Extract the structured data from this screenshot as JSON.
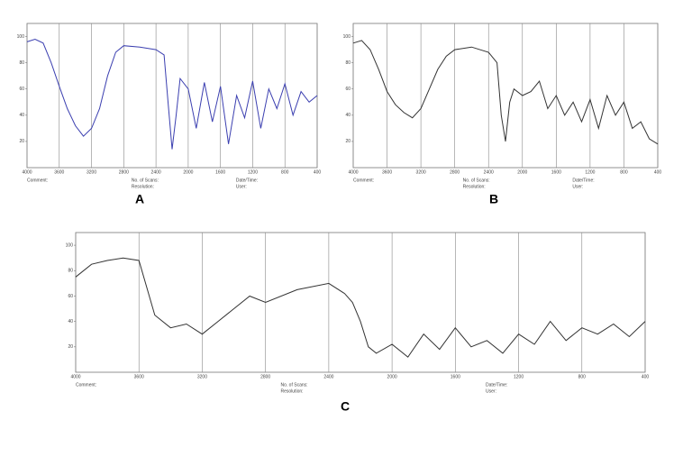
{
  "chart_data": [
    {
      "type": "line",
      "label": "A",
      "x": [
        4000,
        3900,
        3800,
        3700,
        3600,
        3500,
        3400,
        3300,
        3200,
        3100,
        3000,
        2900,
        2800,
        2600,
        2400,
        2300,
        2250,
        2200,
        2150,
        2100,
        2000,
        1900,
        1800,
        1700,
        1600,
        1500,
        1400,
        1300,
        1200,
        1100,
        1000,
        900,
        800,
        700,
        600,
        500,
        400
      ],
      "series": [
        {
          "color": "#3b3fb0",
          "values": [
            96,
            98,
            95,
            80,
            62,
            45,
            32,
            24,
            30,
            45,
            70,
            88,
            93,
            92,
            90,
            86,
            50,
            14,
            40,
            68,
            60,
            30,
            65,
            35,
            62,
            18,
            55,
            38,
            66,
            30,
            60,
            45,
            64,
            40,
            58,
            50,
            55
          ]
        }
      ],
      "xlim": [
        4000,
        400
      ],
      "xticks": [
        4000,
        3600,
        3200,
        2800,
        2400,
        2000,
        1600,
        1200,
        800,
        400
      ],
      "ylim": [
        0,
        110
      ],
      "yticks": [
        20,
        40,
        60,
        80,
        100
      ],
      "grid": true,
      "annotations": [
        "Comment:",
        "No. of Scans:",
        "Date/Time:",
        "Resolution:",
        "User:"
      ]
    },
    {
      "type": "line",
      "label": "B",
      "x": [
        4000,
        3900,
        3800,
        3700,
        3600,
        3500,
        3400,
        3300,
        3200,
        3100,
        3000,
        2900,
        2800,
        2600,
        2400,
        2300,
        2250,
        2200,
        2150,
        2100,
        2000,
        1900,
        1800,
        1700,
        1600,
        1500,
        1400,
        1300,
        1200,
        1100,
        1000,
        900,
        800,
        700,
        600,
        500,
        400
      ],
      "series": [
        {
          "color": "#333333",
          "values": [
            95,
            97,
            90,
            75,
            58,
            48,
            42,
            38,
            45,
            60,
            75,
            85,
            90,
            92,
            88,
            80,
            40,
            20,
            50,
            60,
            55,
            58,
            66,
            45,
            55,
            40,
            50,
            35,
            52,
            30,
            55,
            40,
            50,
            30,
            35,
            22,
            18
          ]
        }
      ],
      "xlim": [
        4000,
        400
      ],
      "xticks": [
        4000,
        3600,
        3200,
        2800,
        2400,
        2000,
        1600,
        1200,
        800,
        400
      ],
      "ylim": [
        0,
        110
      ],
      "yticks": [
        20,
        40,
        60,
        80,
        100
      ],
      "grid": true,
      "annotations": [
        "Comment:",
        "No. of Scans:",
        "Date/Time:",
        "Resolution:",
        "User:"
      ]
    },
    {
      "type": "line",
      "label": "C",
      "x": [
        4000,
        3900,
        3800,
        3700,
        3600,
        3500,
        3400,
        3300,
        3200,
        3100,
        3000,
        2900,
        2800,
        2600,
        2400,
        2300,
        2250,
        2200,
        2150,
        2100,
        2000,
        1900,
        1800,
        1700,
        1600,
        1500,
        1400,
        1300,
        1200,
        1100,
        1000,
        900,
        800,
        700,
        600,
        500,
        400
      ],
      "series": [
        {
          "color": "#333333",
          "values": [
            75,
            85,
            88,
            90,
            88,
            45,
            35,
            38,
            30,
            40,
            50,
            60,
            55,
            65,
            70,
            62,
            55,
            40,
            20,
            15,
            22,
            12,
            30,
            18,
            35,
            20,
            25,
            15,
            30,
            22,
            40,
            25,
            35,
            30,
            38,
            28,
            40
          ]
        }
      ],
      "xlim": [
        4000,
        400
      ],
      "xticks": [
        4000,
        3600,
        3200,
        2800,
        2400,
        2000,
        1600,
        1200,
        800,
        400
      ],
      "ylim": [
        0,
        110
      ],
      "yticks": [
        20,
        40,
        60,
        80,
        100
      ],
      "grid": true,
      "annotations": [
        "Comment:",
        "No. of Scans:",
        "Date/Time:",
        "Resolution:",
        "User:"
      ]
    }
  ]
}
